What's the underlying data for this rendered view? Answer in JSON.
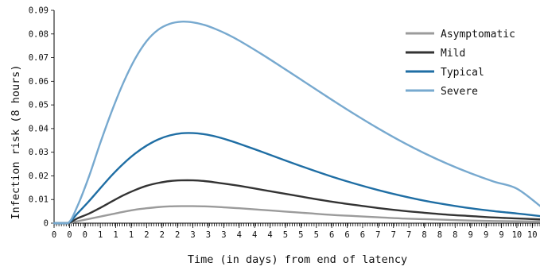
{
  "chart_data": {
    "type": "line",
    "title": "",
    "xlabel": "Time (in days) from end of latency",
    "ylabel": "Infection risk (8 hours)",
    "xlim": [
      0,
      10.5
    ],
    "ylim": [
      0,
      0.09
    ],
    "y_ticks": [
      {
        "value": 0,
        "label": "0"
      },
      {
        "value": 0.01,
        "label": "0.01"
      },
      {
        "value": 0.02,
        "label": "0.02"
      },
      {
        "value": 0.03,
        "label": "0.03"
      },
      {
        "value": 0.04,
        "label": "0.04"
      },
      {
        "value": 0.05,
        "label": "0.05"
      },
      {
        "value": 0.06,
        "label": "0.06"
      },
      {
        "value": 0.07,
        "label": "0.07"
      },
      {
        "value": 0.08,
        "label": "0.08"
      },
      {
        "value": 0.09,
        "label": "0.09"
      }
    ],
    "x_tick_labels": [
      "0",
      "0",
      "0",
      "1",
      "1",
      "1",
      "2",
      "2",
      "2",
      "3",
      "3",
      "3",
      "4",
      "4",
      "4",
      "5",
      "5",
      "5",
      "6",
      "6",
      "6",
      "7",
      "7",
      "7",
      "8",
      "8",
      "8",
      "9",
      "9",
      "9",
      "10",
      "10"
    ],
    "x_tick_step": 0.333333,
    "legend_position": "top-right",
    "grid": false,
    "x": [
      0,
      0.3,
      0.5,
      0.75,
      1,
      1.25,
      1.5,
      1.75,
      2,
      2.25,
      2.5,
      2.75,
      3,
      3.25,
      3.5,
      3.75,
      4,
      4.5,
      5,
      5.5,
      6,
      6.5,
      7,
      7.5,
      8,
      8.5,
      9,
      9.5,
      10,
      10.5
    ],
    "series": [
      {
        "name": "Asymptomatic",
        "color": "#9b9b9b",
        "values": [
          0,
          0,
          0.0008,
          0.0018,
          0.0028,
          0.0038,
          0.0048,
          0.0057,
          0.0063,
          0.0068,
          0.0071,
          0.0072,
          0.0072,
          0.0071,
          0.0069,
          0.0066,
          0.0063,
          0.0056,
          0.0049,
          0.0042,
          0.0035,
          0.003,
          0.0025,
          0.002,
          0.0017,
          0.0014,
          0.0011,
          0.0009,
          0.0008,
          0.0007
        ]
      },
      {
        "name": "Mild",
        "color": "#333333",
        "values": [
          0,
          0,
          0.002,
          0.004,
          0.0065,
          0.0092,
          0.0118,
          0.014,
          0.0158,
          0.017,
          0.0178,
          0.0181,
          0.0181,
          0.0178,
          0.0172,
          0.0165,
          0.0158,
          0.0141,
          0.0124,
          0.0107,
          0.0091,
          0.0077,
          0.0064,
          0.0053,
          0.0044,
          0.0036,
          0.003,
          0.0024,
          0.002,
          0.0016
        ]
      },
      {
        "name": "Typical",
        "color": "#1f6ea4",
        "values": [
          0,
          0,
          0.004,
          0.0092,
          0.0148,
          0.0203,
          0.0252,
          0.0294,
          0.0328,
          0.0354,
          0.0371,
          0.038,
          0.0381,
          0.0376,
          0.0366,
          0.0352,
          0.0336,
          0.0301,
          0.0265,
          0.023,
          0.0197,
          0.0167,
          0.014,
          0.0116,
          0.0095,
          0.0078,
          0.0063,
          0.0051,
          0.0041,
          0.003
        ]
      },
      {
        "name": "Severe",
        "color": "#77a9cf",
        "values": [
          0,
          0,
          0.007,
          0.0195,
          0.034,
          0.0475,
          0.0595,
          0.0695,
          0.077,
          0.0818,
          0.0843,
          0.0852,
          0.0849,
          0.0838,
          0.082,
          0.0798,
          0.0772,
          0.0713,
          0.065,
          0.0586,
          0.0522,
          0.046,
          0.0401,
          0.0346,
          0.0296,
          0.0251,
          0.0211,
          0.0176,
          0.0146,
          0.0073
        ]
      }
    ]
  }
}
